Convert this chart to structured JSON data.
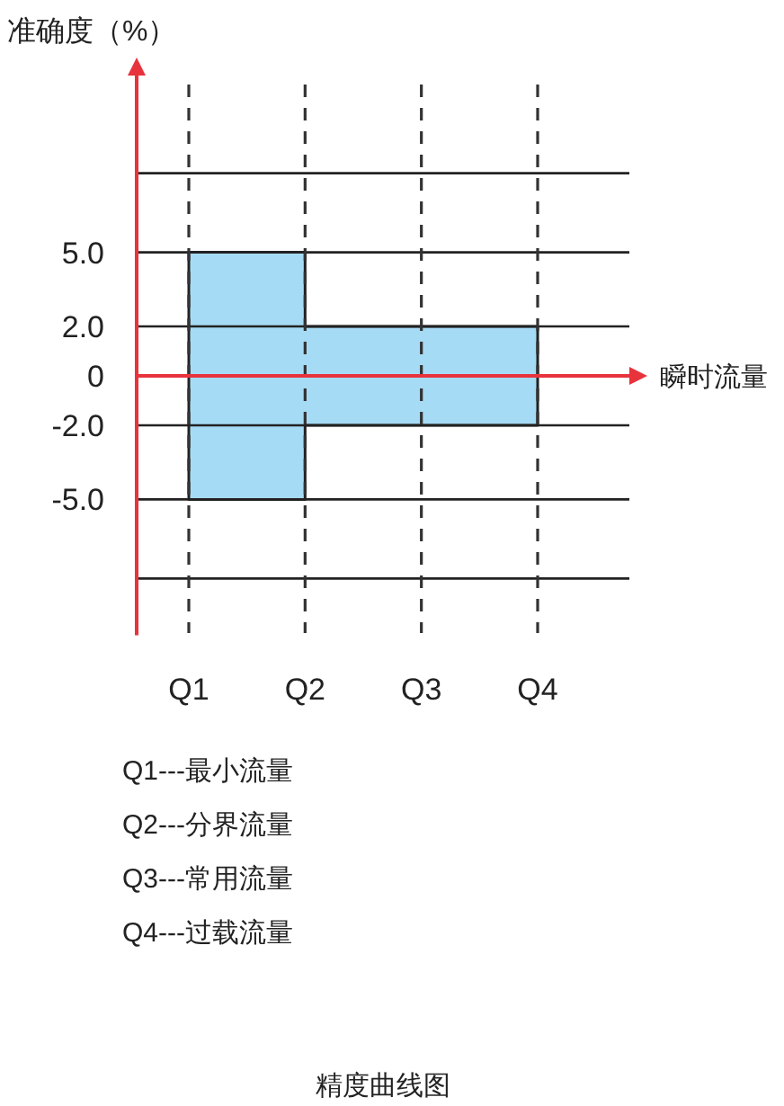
{
  "chart_data": {
    "type": "area",
    "title": "精度曲线图",
    "xlabel": "瞬时流量",
    "ylabel": "准确度（%）",
    "categories": [
      "Q1",
      "Q2",
      "Q3",
      "Q4"
    ],
    "series": [
      {
        "color": "#a6dbf5",
        "values": [
          5,
          2,
          2,
          2
        ]
      },
      {
        "color": "#a6dbf5",
        "values": [
          -5,
          -2,
          -2,
          -2
        ]
      }
    ],
    "ylim": [
      -10.5,
      12.3
    ],
    "yticks": [
      {
        "value": -8.2,
        "label": null
      },
      {
        "value": -5,
        "label": "-5.0"
      },
      {
        "value": -2,
        "label": "-2.0"
      },
      0,
      {
        "value": 2,
        "label": "2.0"
      },
      {
        "value": 5,
        "label": "5.0"
      },
      {
        "value": 8.2,
        "label": null
      }
    ],
    "grid": true,
    "ref_lines": [
      {
        "axis": "y",
        "value": 0,
        "color": "#e8333c"
      }
    ],
    "annotations": [
      "Q1---最小流量",
      "Q2---分界流量",
      "Q3---常用流量",
      "Q4---过载流量"
    ]
  }
}
